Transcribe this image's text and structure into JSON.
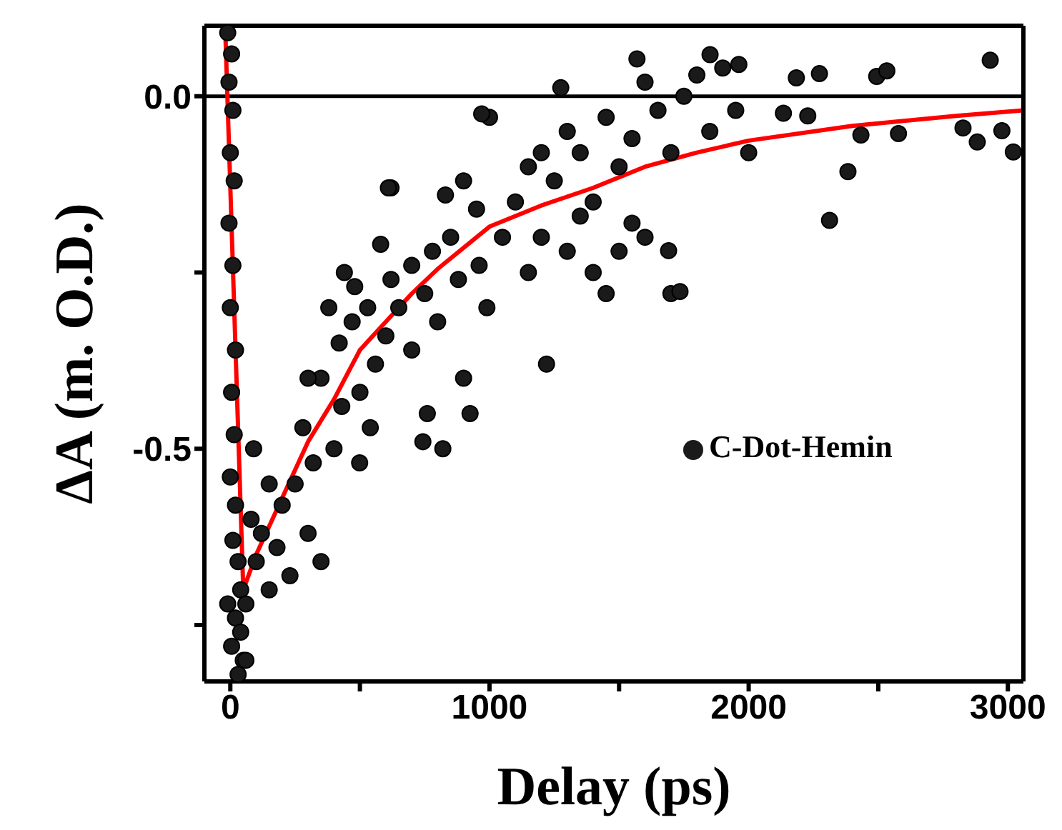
{
  "chart_data": {
    "type": "scatter",
    "xlabel": "Delay (ps)",
    "ylabel": "ΔA (m. O.D.)",
    "xlim": [
      -100,
      3060
    ],
    "ylim": [
      -0.83,
      0.1
    ],
    "xticks": [
      0,
      {
        "value": 500,
        "label": null
      },
      1000,
      {
        "value": 1500,
        "label": null
      },
      2000,
      {
        "value": 2500,
        "label": null
      },
      3000
    ],
    "yticks": [
      {
        "value": -0.75,
        "label": null
      },
      -0.5,
      {
        "value": -0.25,
        "label": null
      },
      {
        "value": 0,
        "label": "0.0"
      }
    ],
    "grid": false,
    "legend": "right",
    "marker": "circle",
    "ref_lines": [
      {
        "axis": "y",
        "value": 0,
        "color": "#000000"
      }
    ],
    "series": [
      {
        "name": "C-Dot-Hemin",
        "color": "#1a1a1a",
        "x": [
          -10,
          5,
          -5,
          10,
          0,
          15,
          -5,
          10,
          0,
          20,
          5,
          15,
          0,
          20,
          10,
          30,
          -10,
          20,
          40,
          5,
          50,
          30,
          60,
          40,
          60,
          80,
          100,
          120,
          150,
          180,
          200,
          230,
          250,
          90,
          150,
          300,
          350,
          320,
          280,
          400,
          430,
          350,
          420,
          470,
          500,
          530,
          560,
          600,
          620,
          650,
          700,
          700,
          750,
          780,
          800,
          850,
          880,
          900,
          950,
          960,
          990,
          540,
          580,
          620,
          760,
          820,
          830,
          900,
          1000,
          440,
          480,
          380,
          300,
          743,
          499,
          925,
          1220,
          610,
          970,
          1275,
          1100,
          1150,
          1200,
          1250,
          1300,
          1350,
          1400,
          1450,
          1500,
          1550,
          1600,
          1650,
          1700,
          1750,
          1800,
          1850,
          1900,
          1950,
          2000,
          1400,
          1450,
          1500,
          1550,
          1600,
          1700,
          1350,
          1300,
          1150,
          1050,
          1200,
          2312,
          2383,
          2433,
          2578,
          2827,
          2882,
          2977,
          3021,
          2932,
          2494,
          2533,
          2273,
          2184,
          2134,
          2228,
          1569,
          1851,
          1962,
          1735,
          1691
        ],
        "values": [
          0.09,
          0.06,
          0.02,
          -0.02,
          -0.08,
          -0.12,
          -0.18,
          -0.24,
          -0.3,
          -0.36,
          -0.42,
          -0.48,
          -0.54,
          -0.58,
          -0.63,
          -0.66,
          -0.72,
          -0.74,
          -0.76,
          -0.78,
          -0.8,
          -0.82,
          -0.8,
          -0.7,
          -0.72,
          -0.6,
          -0.66,
          -0.62,
          -0.7,
          -0.64,
          -0.58,
          -0.68,
          -0.55,
          -0.5,
          -0.55,
          -0.62,
          -0.66,
          -0.52,
          -0.47,
          -0.5,
          -0.44,
          -0.4,
          -0.35,
          -0.32,
          -0.42,
          -0.3,
          -0.38,
          -0.34,
          -0.26,
          -0.3,
          -0.24,
          -0.36,
          -0.28,
          -0.22,
          -0.32,
          -0.2,
          -0.26,
          -0.4,
          -0.16,
          -0.24,
          -0.3,
          -0.47,
          -0.21,
          -0.13,
          -0.45,
          -0.5,
          -0.14,
          -0.12,
          -0.03,
          -0.25,
          -0.27,
          -0.3,
          -0.4,
          -0.49,
          -0.52,
          -0.45,
          -0.38,
          -0.13,
          -0.025,
          0.012,
          -0.15,
          -0.1,
          -0.2,
          -0.12,
          -0.05,
          -0.08,
          -0.15,
          -0.03,
          -0.1,
          -0.06,
          0.02,
          -0.02,
          -0.08,
          0,
          0.03,
          -0.05,
          0.04,
          -0.02,
          -0.08,
          -0.25,
          -0.28,
          -0.22,
          -0.18,
          -0.2,
          -0.28,
          -0.17,
          -0.22,
          -0.25,
          -0.2,
          -0.08,
          -0.176,
          -0.107,
          -0.055,
          -0.053,
          -0.045,
          -0.065,
          -0.049,
          -0.079,
          0.051,
          0.028,
          0.036,
          0.032,
          0.026,
          -0.024,
          -0.028,
          0.053,
          0.059,
          0.045,
          -0.277,
          -0.219
        ]
      },
      {
        "type": "line",
        "color": "#ff0000",
        "marker": "none",
        "x": [
          -20,
          50,
          100,
          200,
          300,
          400,
          500,
          600,
          700,
          800,
          1000,
          1200,
          1400,
          1600,
          1800,
          2000,
          2400,
          2800,
          3060
        ],
        "values": [
          0.1,
          -0.7,
          -0.65,
          -0.57,
          -0.49,
          -0.43,
          -0.36,
          -0.32,
          -0.28,
          -0.245,
          -0.185,
          -0.155,
          -0.13,
          -0.1,
          -0.08,
          -0.063,
          -0.042,
          -0.028,
          -0.02
        ]
      }
    ]
  }
}
